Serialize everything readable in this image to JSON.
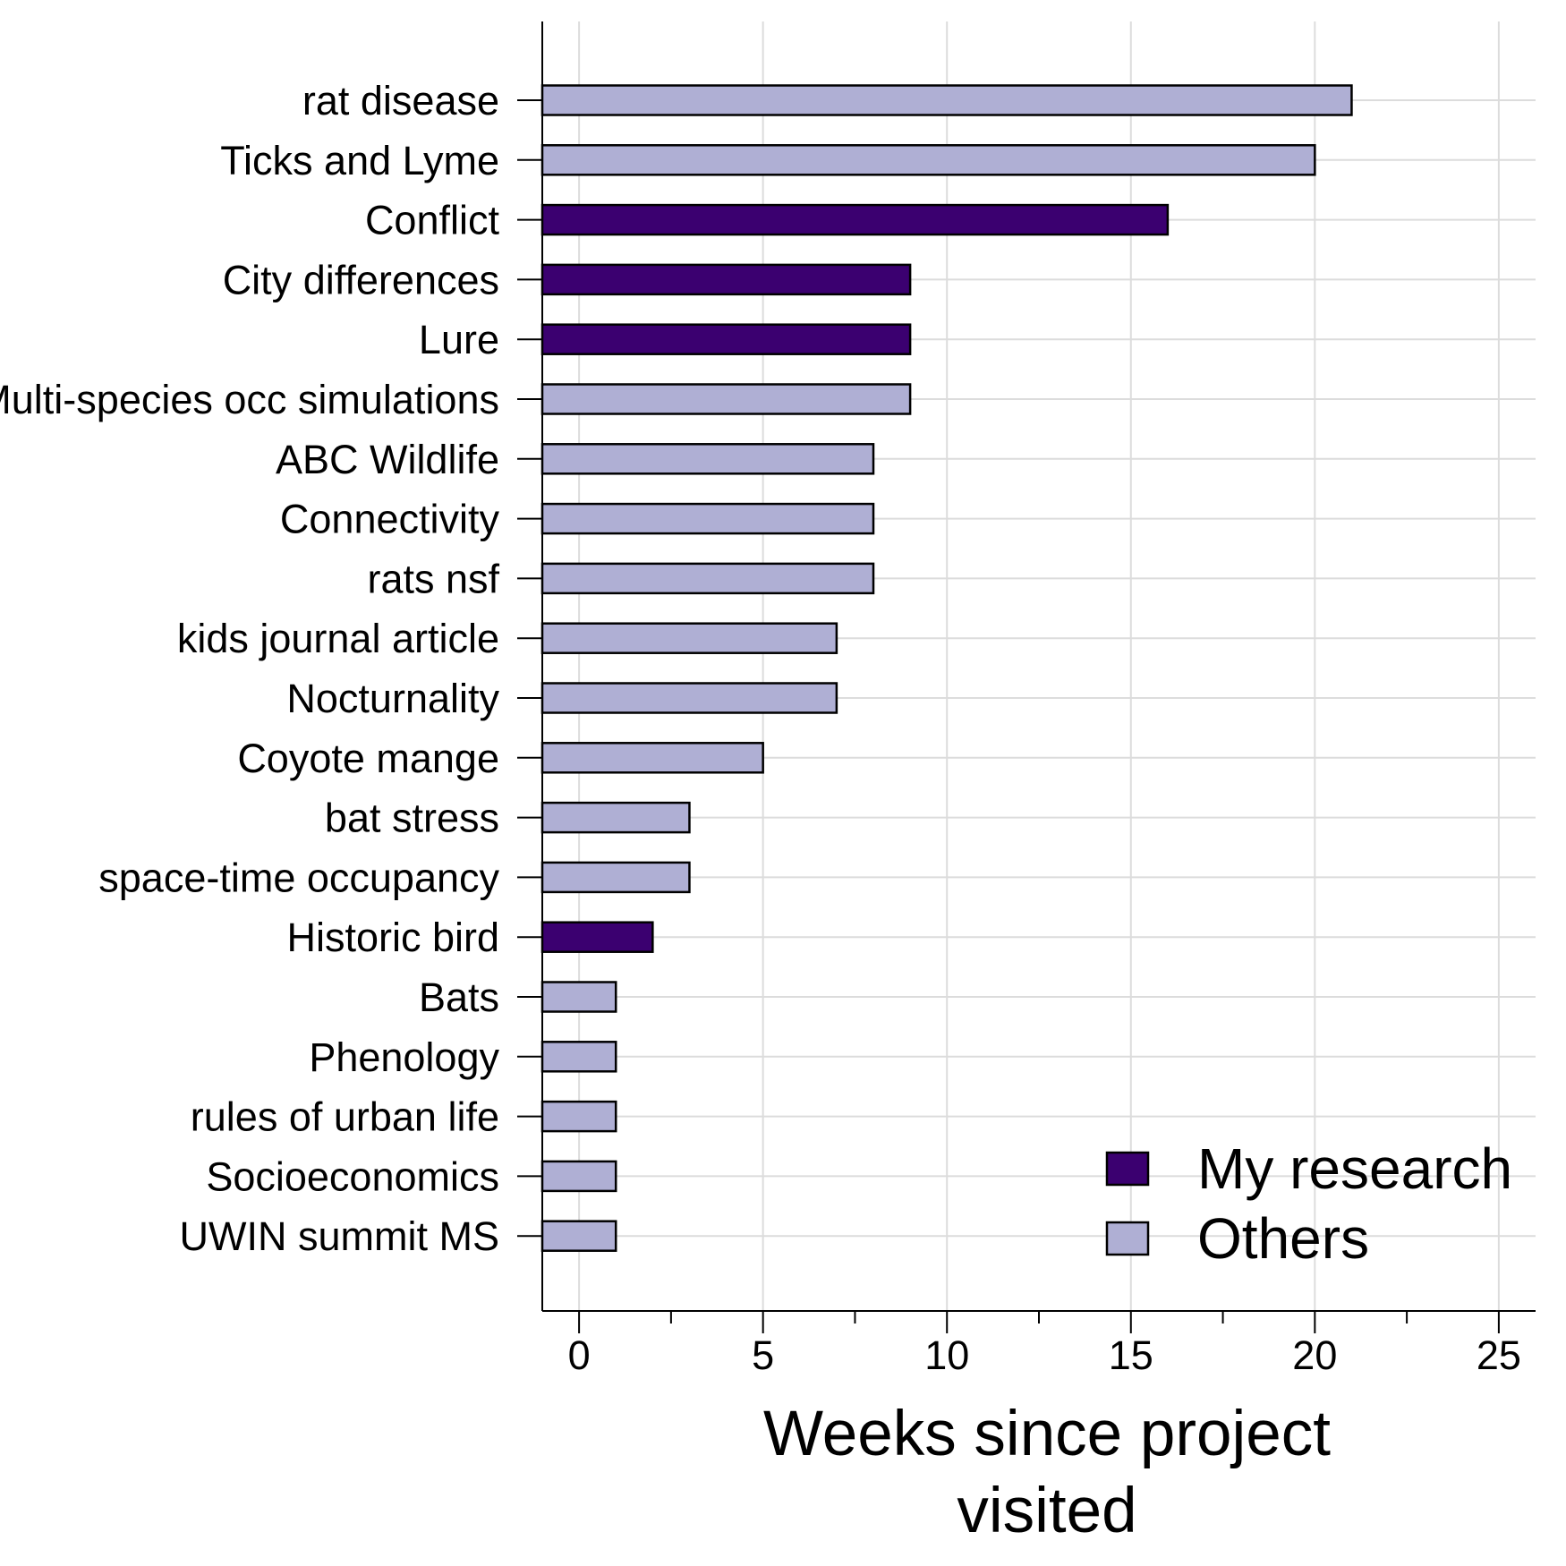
{
  "chart_data": {
    "type": "bar",
    "orientation": "horizontal",
    "categories": [
      "rat disease",
      "Ticks and Lyme",
      "Conflict",
      "City differences",
      "Lure",
      "Multi-species occ simulations",
      "ABC Wildlife",
      "Connectivity",
      "rats nsf",
      "kids journal article",
      "Nocturnality",
      "Coyote mange",
      "bat stress",
      "space-time occupancy",
      "Historic bird",
      "Bats",
      "Phenology",
      "rules of urban life",
      "Socioeconomics",
      "UWIN summit MS"
    ],
    "values": [
      21,
      20,
      16,
      9,
      9,
      9,
      8,
      8,
      8,
      7,
      7,
      5,
      3,
      3,
      2,
      1,
      1,
      1,
      1,
      1
    ],
    "groups": [
      "Others",
      "Others",
      "My research",
      "My research",
      "My research",
      "Others",
      "Others",
      "Others",
      "Others",
      "Others",
      "Others",
      "Others",
      "Others",
      "Others",
      "My research",
      "Others",
      "Others",
      "Others",
      "Others",
      "Others"
    ],
    "legend": {
      "placement": "bottom-right",
      "entries": [
        {
          "name": "My research",
          "color": "#3b0070"
        },
        {
          "name": "Others",
          "color": "#afafd4"
        }
      ]
    },
    "xlabel": [
      "Weeks since project",
      "visited"
    ],
    "ylabel": "",
    "xlim": [
      -1,
      26
    ],
    "xticks": [
      0,
      5,
      10,
      15,
      20,
      25
    ],
    "xminor_ticks": [
      2.5,
      7.5,
      12.5,
      17.5,
      22.5
    ],
    "grid": true
  }
}
